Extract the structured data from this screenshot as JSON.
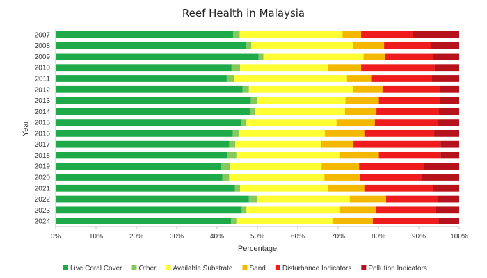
{
  "chart_data": {
    "type": "bar",
    "orientation": "horizontal",
    "stacked": "percent",
    "title": "Reef Health in Malaysia",
    "xlabel": "Percentage",
    "ylabel": "Year",
    "xlim": [
      0,
      100
    ],
    "x_ticks": [
      "0%",
      "10%",
      "20%",
      "30%",
      "40%",
      "50%",
      "60%",
      "70%",
      "80%",
      "90%",
      "100%"
    ],
    "legend_position": "bottom",
    "categories": [
      "2007",
      "2008",
      "2009",
      "2010",
      "2011",
      "2012",
      "2013",
      "2014",
      "2015",
      "2016",
      "2017",
      "2018",
      "2019",
      "2020",
      "2021",
      "2022",
      "2023",
      "2024"
    ],
    "series": [
      {
        "name": "Live Coral Cover",
        "color": "#1faa4a",
        "values": [
          44.0,
          47.2,
          50.3,
          43.6,
          42.4,
          46.3,
          48.4,
          48.1,
          46.0,
          43.9,
          43.0,
          42.6,
          40.9,
          41.3,
          44.4,
          47.9,
          46.1,
          43.5
        ]
      },
      {
        "name": "Other",
        "color": "#85c95a",
        "values": [
          1.6,
          1.3,
          1.2,
          2.1,
          1.8,
          1.6,
          1.6,
          1.3,
          1.3,
          1.5,
          1.5,
          2.2,
          2.4,
          1.7,
          1.3,
          2.0,
          1.2,
          1.3
        ]
      },
      {
        "name": "Available Substrate",
        "color": "#ffff33",
        "values": [
          25.5,
          25.2,
          24.8,
          21.8,
          28.0,
          25.9,
          21.8,
          22.3,
          22.3,
          21.3,
          21.2,
          25.5,
          22.6,
          23.6,
          21.7,
          23.0,
          23.0,
          23.8
        ]
      },
      {
        "name": "Sand",
        "color": "#f5b800",
        "values": [
          4.6,
          7.7,
          5.4,
          8.2,
          6.0,
          7.2,
          8.3,
          7.8,
          9.5,
          9.8,
          8.1,
          9.8,
          9.3,
          8.8,
          9.1,
          9.0,
          9.1,
          10.0
        ]
      },
      {
        "name": "Disturbance Indicators",
        "color": "#ee1c1c",
        "values": [
          12.9,
          11.6,
          11.8,
          18.2,
          15.0,
          14.3,
          15.0,
          15.5,
          15.6,
          17.3,
          21.6,
          15.3,
          16.1,
          15.3,
          17.1,
          12.9,
          14.8,
          16.3
        ]
      },
      {
        "name": "Pollution Indicators",
        "color": "#b5121b",
        "values": [
          11.4,
          7.0,
          6.5,
          6.1,
          6.8,
          4.7,
          4.9,
          5.0,
          5.3,
          6.2,
          4.6,
          4.6,
          8.7,
          9.3,
          6.4,
          5.2,
          5.8,
          5.1
        ]
      }
    ]
  }
}
